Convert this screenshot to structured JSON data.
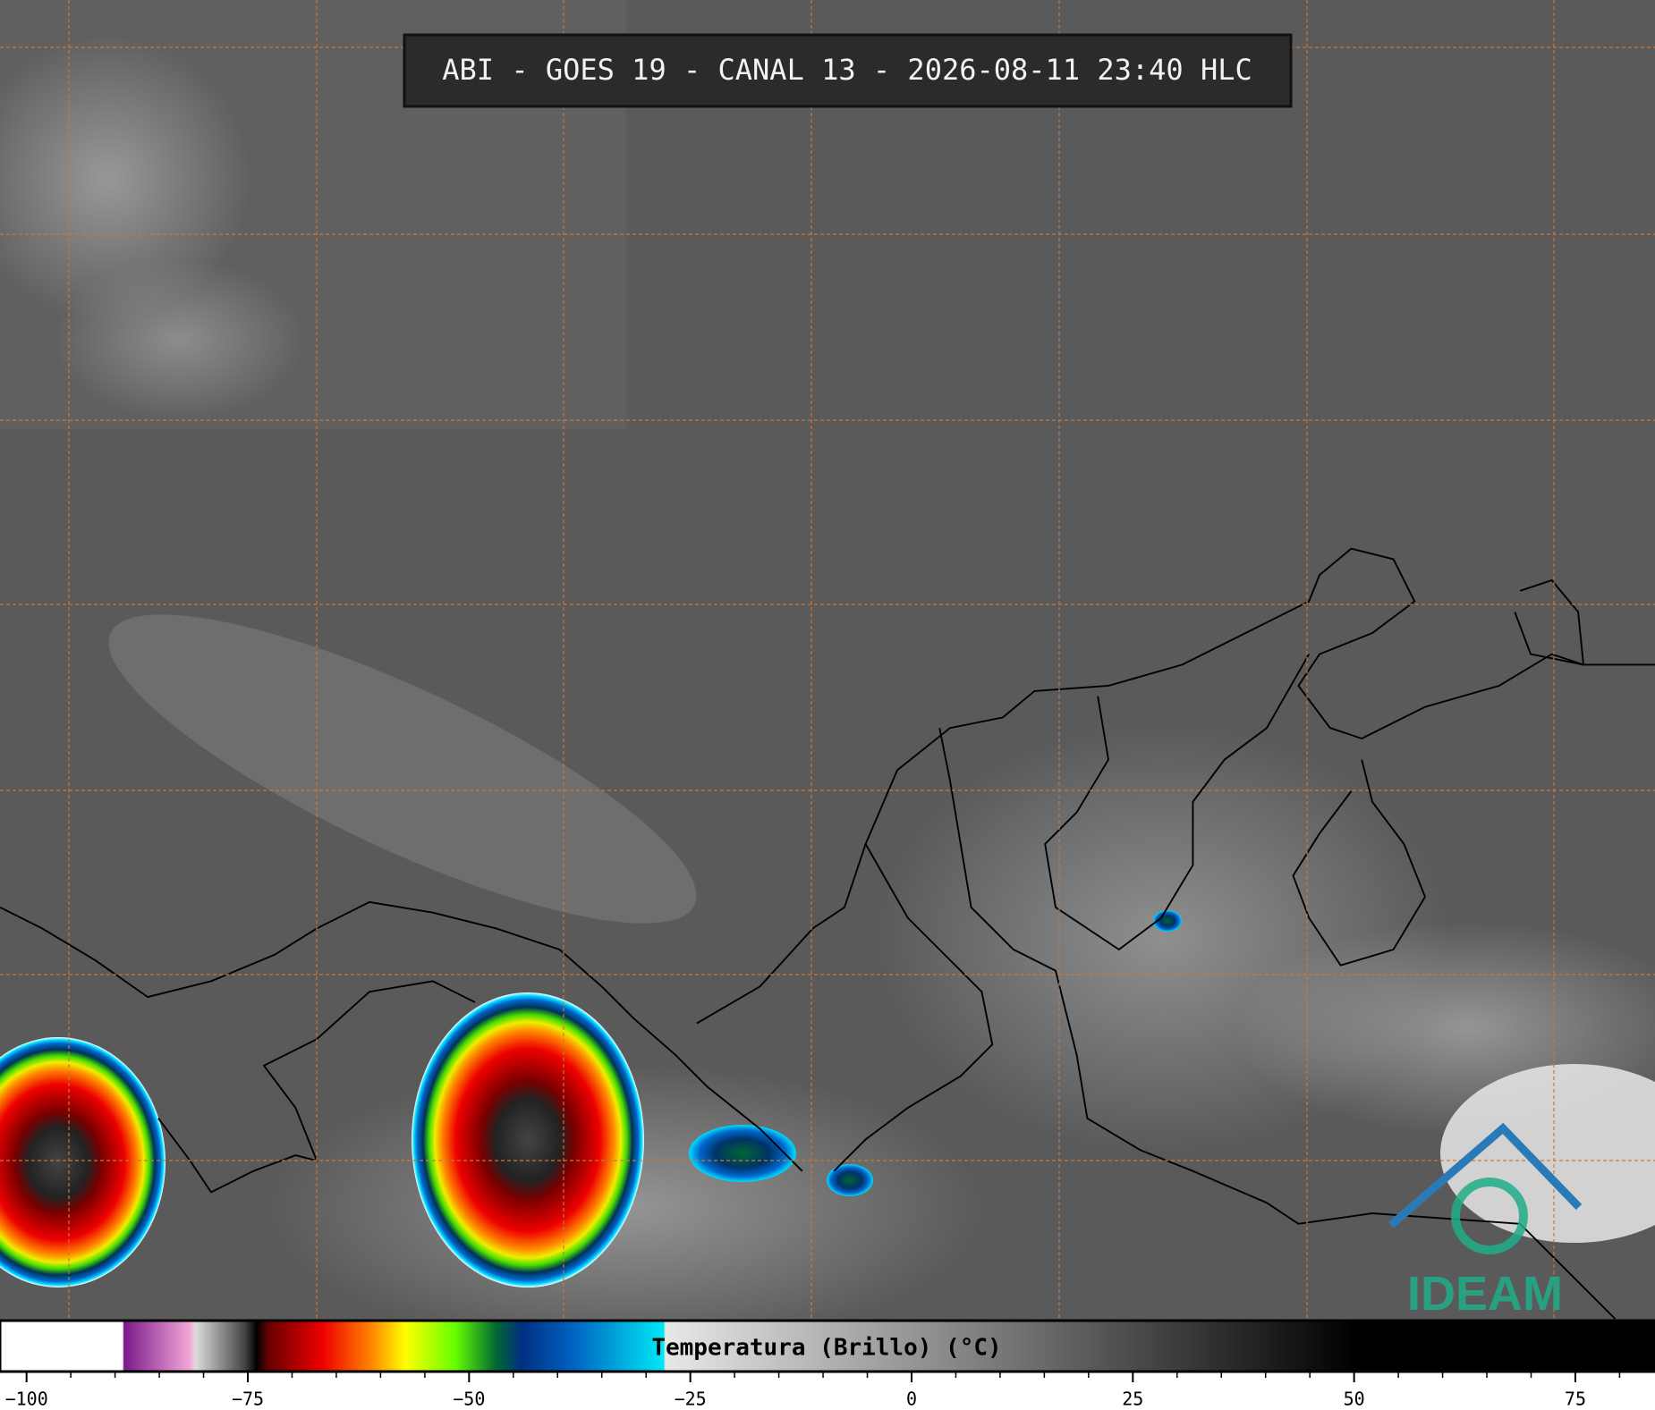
{
  "title": "ABI - GOES 19 - CANAL 13 - 2026-08-11 23:40 HLC",
  "logo": "IDEAM",
  "colorbar": {
    "label": "Temperatura (Brillo) (°C)",
    "lim": [
      -103,
      84
    ],
    "ticks": [
      {
        "value": -100,
        "label": "−100"
      },
      {
        "value": -75,
        "label": "−75"
      },
      {
        "value": -50,
        "label": "−50"
      },
      {
        "value": -25,
        "label": "−25"
      },
      0,
      25,
      50,
      75
    ],
    "minor_ticks": [
      -95,
      -90,
      -85,
      -80,
      -70,
      -65,
      -60,
      -55,
      -45,
      -40,
      -35,
      -30,
      -20,
      -15,
      -10,
      -5,
      5,
      10,
      15,
      20,
      30,
      35,
      40,
      45,
      55,
      60,
      65,
      70,
      80
    ]
  }
}
